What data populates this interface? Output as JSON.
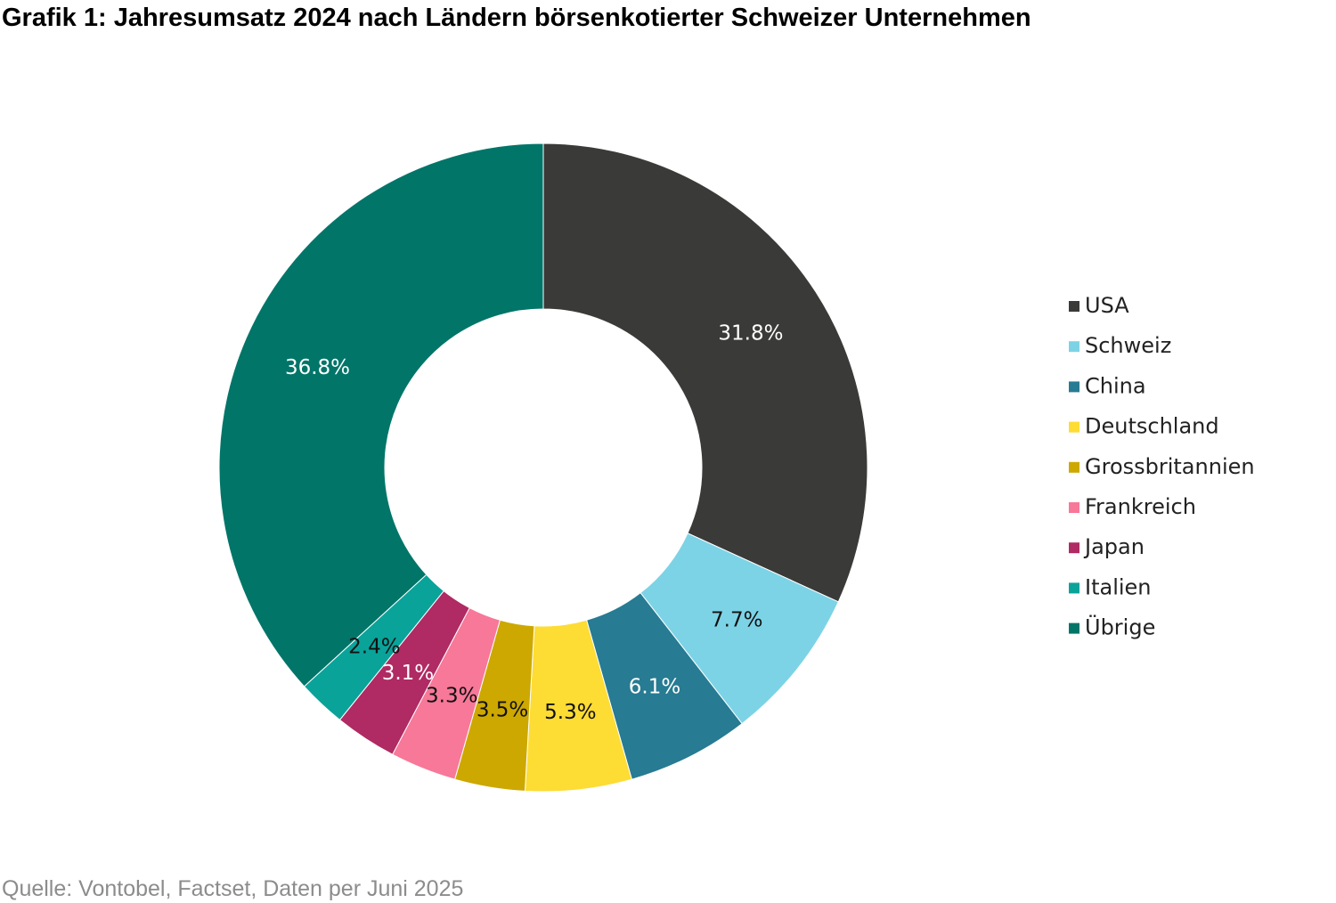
{
  "title": "Grafik 1: Jahresumsatz 2024 nach Ländern börsenkotierter Schweizer Unternehmen",
  "source": "Quelle: Vontobel, Factset, Daten per Juni 2025",
  "chart_data": {
    "type": "pie",
    "variant": "donut",
    "title": "Grafik 1: Jahresumsatz 2024 nach Ländern börsenkotierter Schweizer Unternehmen",
    "legend_position": "right",
    "categories": [
      "USA",
      "Schweiz",
      "China",
      "Deutschland",
      "Grossbritannien",
      "Frankreich",
      "Japan",
      "Italien",
      "Übrige"
    ],
    "values": [
      31.8,
      7.7,
      6.1,
      5.3,
      3.5,
      3.3,
      3.1,
      2.4,
      36.8
    ],
    "data_labels": [
      "31.8%",
      "7.7%",
      "6.1%",
      "5.3%",
      "3.5%",
      "3.3%",
      "3.1%",
      "2.4%",
      "36.8%"
    ],
    "colors": [
      "#3a3a38",
      "#7dd3e6",
      "#277b92",
      "#fddc34",
      "#cda800",
      "#f77898",
      "#b02a63",
      "#0aa39a",
      "#027569"
    ],
    "label_colors": [
      "#ffffff",
      "#111111",
      "#ffffff",
      "#111111",
      "#111111",
      "#111111",
      "#ffffff",
      "#111111",
      "#ffffff"
    ]
  }
}
